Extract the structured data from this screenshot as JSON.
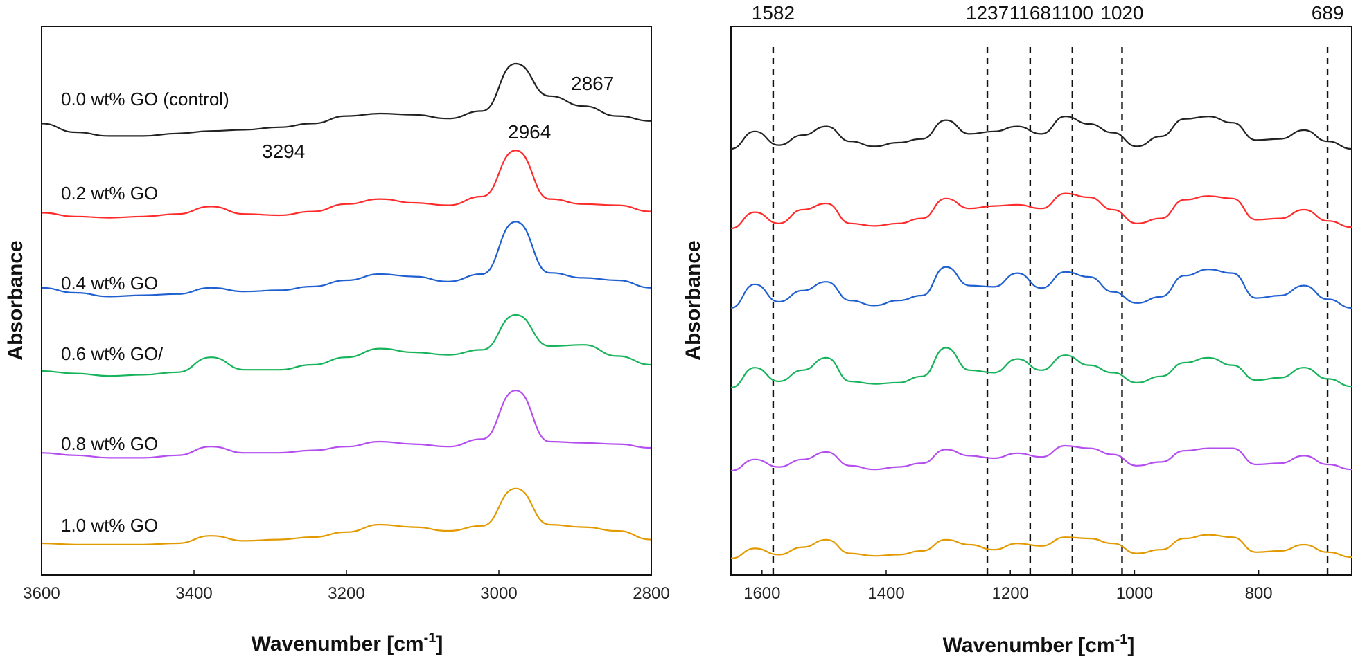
{
  "chart_data": [
    {
      "type": "line",
      "panel": "left",
      "xlabel": "Wavenumber [cm",
      "xlabel_sup": "-1",
      "xlabel_tail": "]",
      "ylabel": "Absorbance",
      "xlim": [
        3600,
        2800
      ],
      "xticks": [
        "3600",
        "3400",
        "3200",
        "3000",
        "2800"
      ],
      "annotations": [
        "2867",
        "2964",
        "3294"
      ],
      "series": [
        {
          "name": "0.0 wt% GO (control)",
          "color": "#222222",
          "offset": 5,
          "shape": [
            3.2,
            2.5,
            2.2,
            2.2,
            2.4,
            2.6,
            2.7,
            2.9,
            3.2,
            3.8,
            4.0,
            3.9,
            3.6,
            4.2,
            8.0,
            5.4,
            4.6,
            3.8,
            3.4
          ]
        },
        {
          "name": "0.2 wt% GO",
          "color": "#ff2a2a",
          "offset": 4,
          "shape": [
            2.7,
            2.4,
            2.3,
            2.4,
            2.6,
            3.2,
            2.6,
            2.5,
            2.8,
            3.4,
            3.8,
            3.5,
            3.3,
            4.0,
            7.7,
            3.8,
            3.4,
            3.3,
            2.8
          ]
        },
        {
          "name": "0.4 wt% GO",
          "color": "#1f5fd0",
          "offset": 3,
          "shape": [
            2.9,
            2.5,
            2.2,
            2.3,
            2.4,
            2.9,
            2.6,
            2.7,
            3.0,
            3.5,
            4.0,
            3.8,
            3.4,
            4.0,
            8.2,
            4.1,
            3.7,
            3.5,
            2.9
          ]
        },
        {
          "name": "0.6 wt% GO/",
          "color": "#16b35a",
          "offset": 2,
          "shape": [
            2.5,
            2.3,
            2.1,
            2.2,
            2.4,
            3.6,
            2.6,
            2.6,
            3.0,
            3.6,
            4.3,
            4.0,
            3.8,
            4.2,
            7.0,
            4.5,
            4.6,
            3.7,
            3.0
          ]
        },
        {
          "name": "0.8 wt% GO",
          "color": "#b44df0",
          "offset": 1,
          "shape": [
            2.6,
            2.4,
            2.2,
            2.2,
            2.4,
            3.1,
            2.6,
            2.6,
            2.8,
            3.1,
            3.5,
            3.3,
            3.1,
            3.7,
            7.6,
            3.5,
            3.4,
            3.3,
            3.0
          ]
        },
        {
          "name": "1.0 wt% GO",
          "color": "#e39a00",
          "offset": 0,
          "shape": [
            2.0,
            1.9,
            1.9,
            1.9,
            2.0,
            2.6,
            2.2,
            2.3,
            2.5,
            2.9,
            3.5,
            3.3,
            3.0,
            3.4,
            6.4,
            3.5,
            3.3,
            3.0,
            2.3
          ]
        }
      ]
    },
    {
      "type": "line",
      "panel": "right",
      "xlabel": "Wavenumber [cm",
      "xlabel_sup": "-1",
      "xlabel_tail": "]",
      "ylabel": "Absorbance",
      "xlim": [
        1650,
        650
      ],
      "xticks": [
        "1600",
        "1400",
        "1200",
        "1000",
        "800"
      ],
      "peak_lines": [
        1582,
        1237,
        1168,
        1100,
        1020,
        689
      ],
      "peak_labels": [
        "1582",
        "1237",
        "1168",
        "1100",
        "1020",
        "689"
      ],
      "series": [
        {
          "name": "0.0 wt% GO (control)",
          "color": "#222222",
          "offset": 5,
          "shape": [
            2.0,
            3.4,
            2.3,
            3.1,
            3.8,
            2.6,
            2.2,
            2.5,
            2.8,
            4.3,
            3.2,
            3.4,
            3.8,
            3.2,
            4.6,
            4.0,
            3.3,
            2.2,
            3.0,
            4.4,
            4.6,
            4.1,
            2.7,
            2.8,
            3.5,
            2.6,
            2.0
          ]
        },
        {
          "name": "0.2 wt% GO",
          "color": "#ff2a2a",
          "offset": 4,
          "shape": [
            2.0,
            3.3,
            2.4,
            3.5,
            4.0,
            2.4,
            2.2,
            2.4,
            2.8,
            4.4,
            3.6,
            3.8,
            3.9,
            3.6,
            4.8,
            4.5,
            3.5,
            2.4,
            2.8,
            4.3,
            4.6,
            4.4,
            2.7,
            2.8,
            3.5,
            2.6,
            2.1
          ]
        },
        {
          "name": "0.4 wt% GO",
          "color": "#1f5fd0",
          "offset": 3,
          "shape": [
            2.0,
            3.9,
            2.5,
            3.4,
            4.1,
            2.6,
            2.2,
            2.6,
            3.0,
            5.3,
            3.8,
            3.7,
            4.8,
            3.6,
            4.9,
            4.5,
            3.3,
            2.4,
            2.9,
            4.6,
            5.1,
            4.8,
            2.8,
            3.0,
            3.8,
            2.7,
            2.0
          ]
        },
        {
          "name": "0.6 wt% GO/",
          "color": "#16b35a",
          "offset": 2,
          "shape": [
            2.0,
            3.6,
            2.5,
            3.4,
            4.4,
            2.5,
            2.3,
            2.4,
            2.9,
            5.2,
            3.4,
            3.2,
            4.3,
            3.4,
            4.6,
            3.8,
            3.2,
            2.4,
            2.9,
            4.0,
            4.4,
            3.8,
            2.6,
            2.8,
            3.6,
            2.7,
            2.1
          ]
        },
        {
          "name": "0.8 wt% GO",
          "color": "#b44df0",
          "offset": 1,
          "shape": [
            2.0,
            2.9,
            2.3,
            2.9,
            3.5,
            2.4,
            2.1,
            2.3,
            2.6,
            3.7,
            3.2,
            3.0,
            3.4,
            3.1,
            4.0,
            3.8,
            3.3,
            2.4,
            2.7,
            3.6,
            3.8,
            3.8,
            2.5,
            2.6,
            3.2,
            2.5,
            2.1
          ]
        },
        {
          "name": "1.0 wt% GO",
          "color": "#e39a00",
          "offset": 0,
          "shape": [
            1.9,
            2.7,
            2.2,
            2.8,
            3.4,
            2.3,
            2.1,
            2.2,
            2.5,
            3.4,
            3.0,
            2.6,
            3.1,
            2.9,
            3.6,
            3.5,
            3.1,
            2.3,
            2.6,
            3.5,
            3.8,
            3.6,
            2.4,
            2.5,
            3.0,
            2.4,
            2.0
          ]
        }
      ]
    }
  ]
}
